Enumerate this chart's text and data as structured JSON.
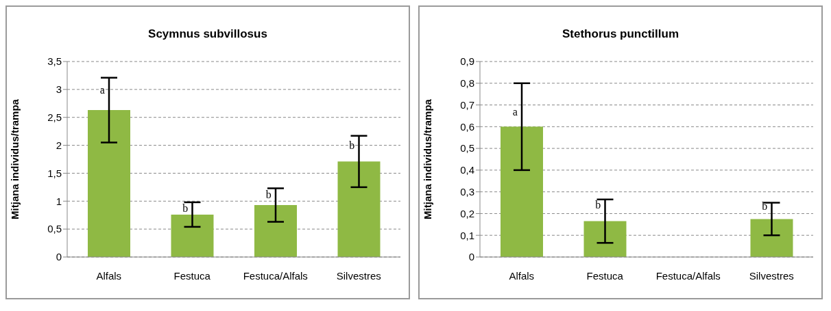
{
  "chart_data": [
    {
      "type": "bar",
      "title": "Scymnus subvillosus",
      "ylabel": "Mitjana individus/trampa",
      "categories": [
        "Alfals",
        "Festuca",
        "Festuca/Alfals",
        "Silvestres"
      ],
      "values": [
        2.63,
        0.76,
        0.93,
        1.71
      ],
      "errors": [
        0.58,
        0.22,
        0.3,
        0.46
      ],
      "color": "#8fb944",
      "ylim": [
        0,
        3.5
      ],
      "yticks": [
        0,
        {
          "value": 0.5,
          "label": "0,5"
        },
        1,
        {
          "value": 1.5,
          "label": "1,5"
        },
        2,
        {
          "value": 2.5,
          "label": "2,5"
        },
        3,
        {
          "value": 3.5,
          "label": "3,5"
        }
      ],
      "grid": "y",
      "annotations": [
        {
          "text": "a",
          "x": "Alfals",
          "y": 3.0
        },
        {
          "text": "b",
          "x": "Festuca",
          "y": 0.88
        },
        {
          "text": "b",
          "x": "Festuca/Alfals",
          "y": 1.12
        },
        {
          "text": "b",
          "x": "Silvestres",
          "y": 2.0
        }
      ]
    },
    {
      "type": "bar",
      "title": "Stethorus punctillum",
      "ylabel": "Mitjana individus/trampa",
      "categories": [
        "Alfals",
        "Festuca",
        "Festuca/Alfals",
        "Silvestres"
      ],
      "values": [
        0.6,
        0.165,
        null,
        0.175
      ],
      "errors": [
        0.2,
        0.1,
        null,
        0.075
      ],
      "color": "#8fb944",
      "ylim": [
        0,
        0.9
      ],
      "yticks": [
        0,
        {
          "value": 0.1,
          "label": "0,1"
        },
        {
          "value": 0.2,
          "label": "0,2"
        },
        {
          "value": 0.3,
          "label": "0,3"
        },
        {
          "value": 0.4,
          "label": "0,4"
        },
        {
          "value": 0.5,
          "label": "0,5"
        },
        {
          "value": 0.6,
          "label": "0,6"
        },
        {
          "value": 0.7,
          "label": "0,7"
        },
        {
          "value": 0.8,
          "label": "0,8"
        },
        {
          "value": 0.9,
          "label": "0,9"
        }
      ],
      "grid": "y",
      "annotations": [
        {
          "text": "a",
          "x": "Alfals",
          "y": 0.67
        },
        {
          "text": "b",
          "x": "Festuca",
          "y": 0.24
        },
        {
          "text": "b",
          "x": "Silvestres",
          "y": 0.235
        }
      ]
    }
  ]
}
